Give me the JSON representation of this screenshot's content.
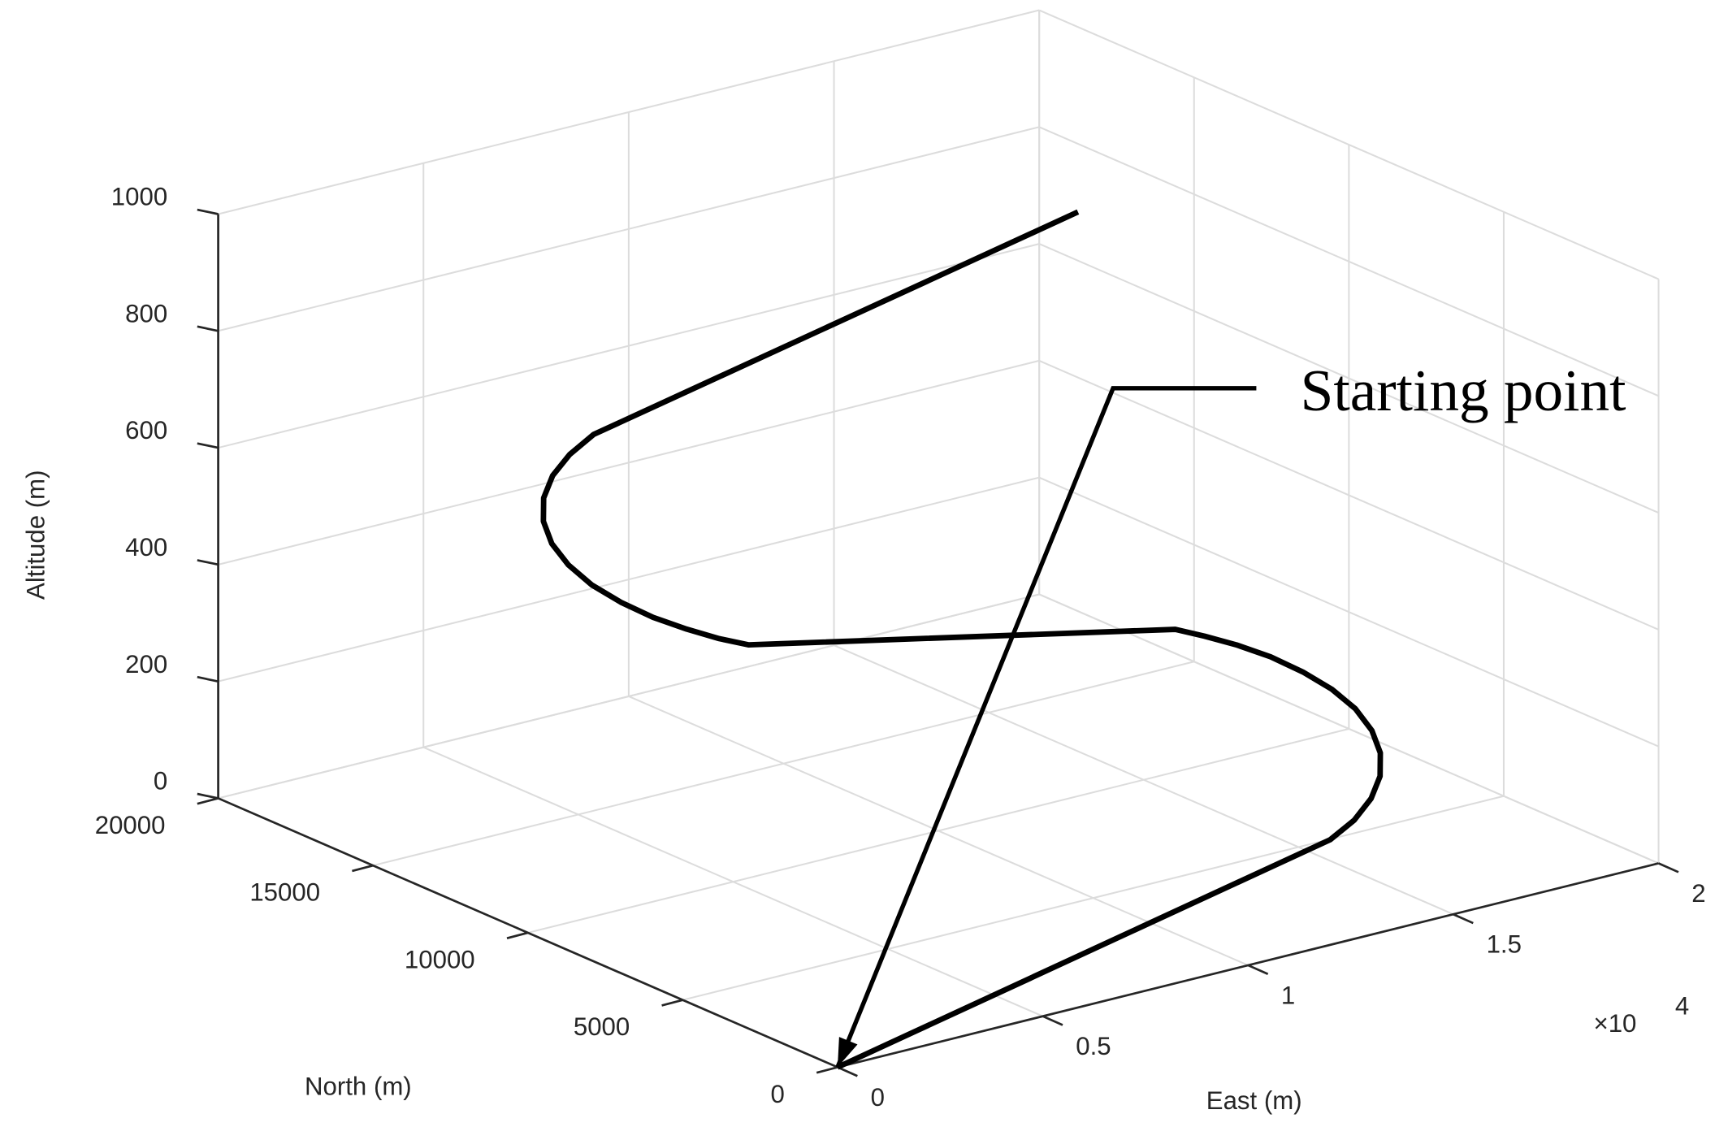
{
  "chart_data": {
    "type": "line3d",
    "xlabel": "East (m)",
    "ylabel": "North (m)",
    "zlabel": "Altitude (m)",
    "x": [
      0,
      12000,
      12647,
      13250,
      13768,
      14165,
      14415,
      14500,
      14415,
      14165,
      13768,
      13250,
      12647,
      12000,
      1600,
      953,
      350,
      -168,
      -565,
      -815,
      -900,
      -815,
      -565,
      -168,
      350,
      953,
      1600,
      13400
    ],
    "y": [
      0,
      0,
      85,
      335,
      732,
      1250,
      1853,
      2500,
      3147,
      3750,
      4268,
      4665,
      4915,
      5000,
      5000,
      5085,
      5335,
      5732,
      6250,
      6853,
      7500,
      8147,
      8750,
      9268,
      9665,
      9915,
      10000,
      10000
    ],
    "z": [
      0,
      180,
      200,
      221,
      241,
      262,
      282,
      303,
      323,
      343,
      364,
      384,
      404,
      425,
      580,
      600,
      621,
      641,
      662,
      682,
      703,
      723,
      743,
      764,
      784,
      804,
      825,
      1000
    ],
    "color": "#000000",
    "xlim": [
      0,
      20000
    ],
    "ylim": [
      0,
      20000
    ],
    "zlim": [
      0,
      1000
    ],
    "xticks": [
      0,
      {
        "value": 5000,
        "label": "0.5"
      },
      {
        "value": 10000,
        "label": "1"
      },
      {
        "value": 15000,
        "label": "1.5"
      },
      {
        "value": 20000,
        "label": "2"
      }
    ],
    "yticks": [
      0,
      5000,
      10000,
      15000,
      20000
    ],
    "zticks": [
      0,
      200,
      400,
      600,
      800,
      1000
    ],
    "x_exponent": {
      "base": "×10",
      "power": 4
    },
    "grid": true,
    "annotation": {
      "text": "Starting point"
    }
  }
}
